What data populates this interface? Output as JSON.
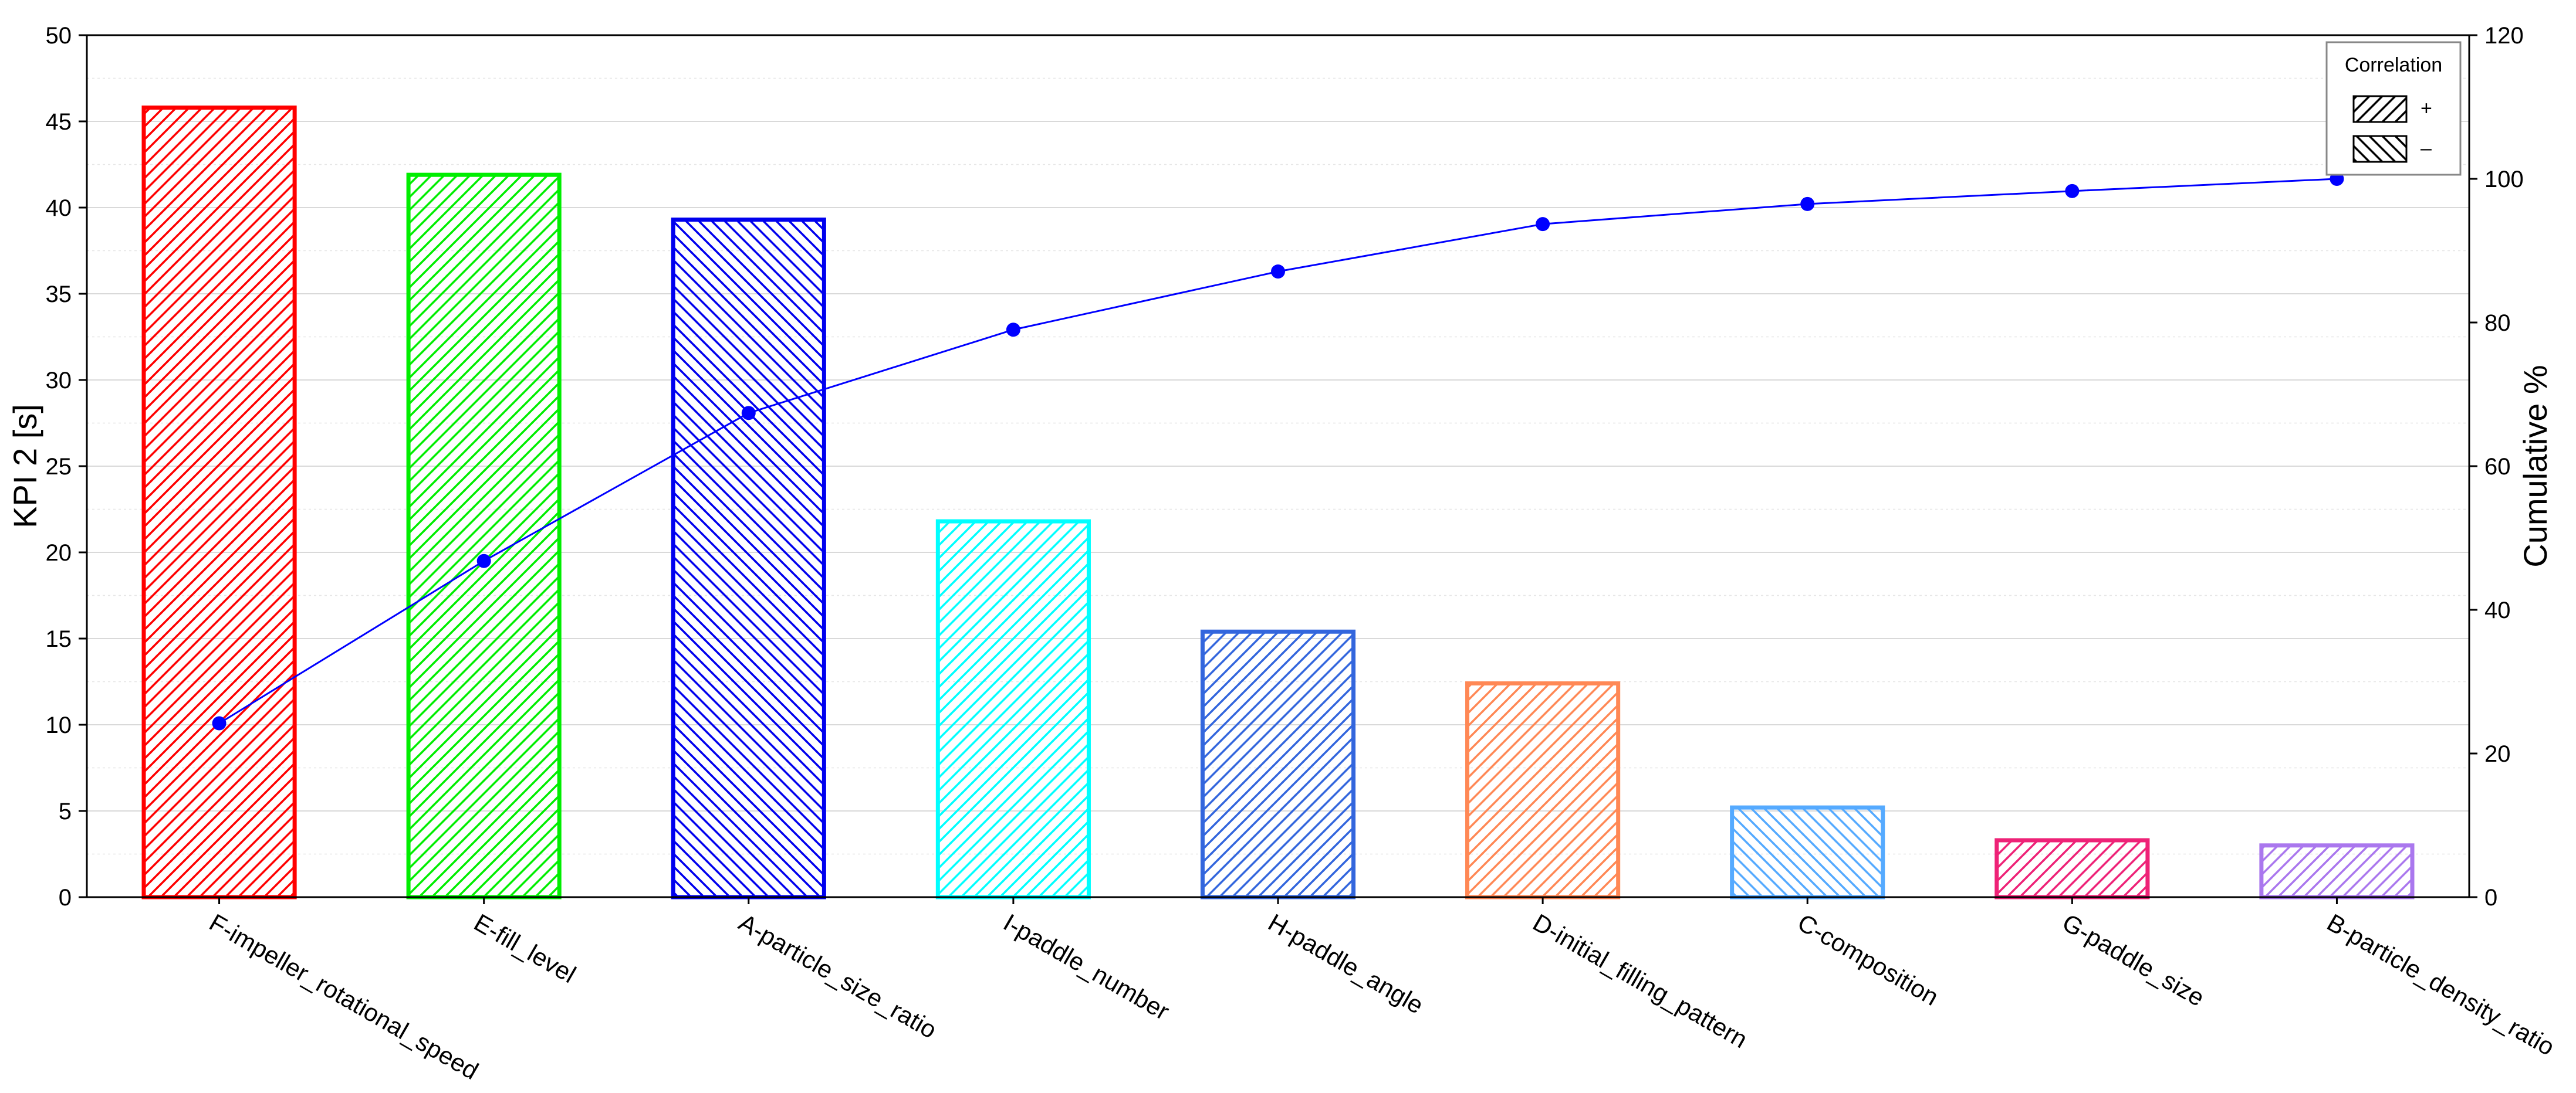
{
  "chart_data": {
    "type": "bar",
    "title": "",
    "xlabel": "",
    "ylabel": "KPI 2 [s]",
    "y2label": "Cumulative %",
    "ylim": [
      0,
      50
    ],
    "y2lim": [
      0,
      120
    ],
    "yticks": [
      0,
      5,
      10,
      15,
      20,
      25,
      30,
      35,
      40,
      45,
      50
    ],
    "y2ticks": [
      0,
      20,
      40,
      60,
      80,
      100,
      120
    ],
    "grid": true,
    "categories": [
      "F-impeller_rotational_speed",
      "E-fill_level",
      "A-particle_size_ratio",
      "I-paddle_number",
      "H-paddle_angle",
      "D-initial_filling_pattern",
      "C-composition",
      "G-paddle_size",
      "B-particle_density_ratio"
    ],
    "values": [
      45.8,
      41.9,
      39.3,
      21.8,
      15.4,
      12.4,
      5.2,
      3.3,
      3.0
    ],
    "correlation": [
      "+",
      "+",
      "-",
      "+",
      "+",
      "+",
      "-",
      "+",
      "+"
    ],
    "colors": [
      "#ff0000",
      "#00ee00",
      "#0000ee",
      "#00ffff",
      "#3366dd",
      "#ff8855",
      "#55aaff",
      "#ee2277",
      "#aa77ee"
    ],
    "cumulative_percent": [
      24.2,
      46.8,
      67.4,
      79.0,
      87.1,
      93.7,
      96.5,
      98.3,
      100.0
    ],
    "cumulative_color": "#0000ff",
    "legend": {
      "title": "Correlation",
      "position": "top-right",
      "items": [
        {
          "label": "+",
          "pattern": "forward-hatch"
        },
        {
          "label": "–",
          "pattern": "backward-hatch"
        }
      ]
    }
  }
}
